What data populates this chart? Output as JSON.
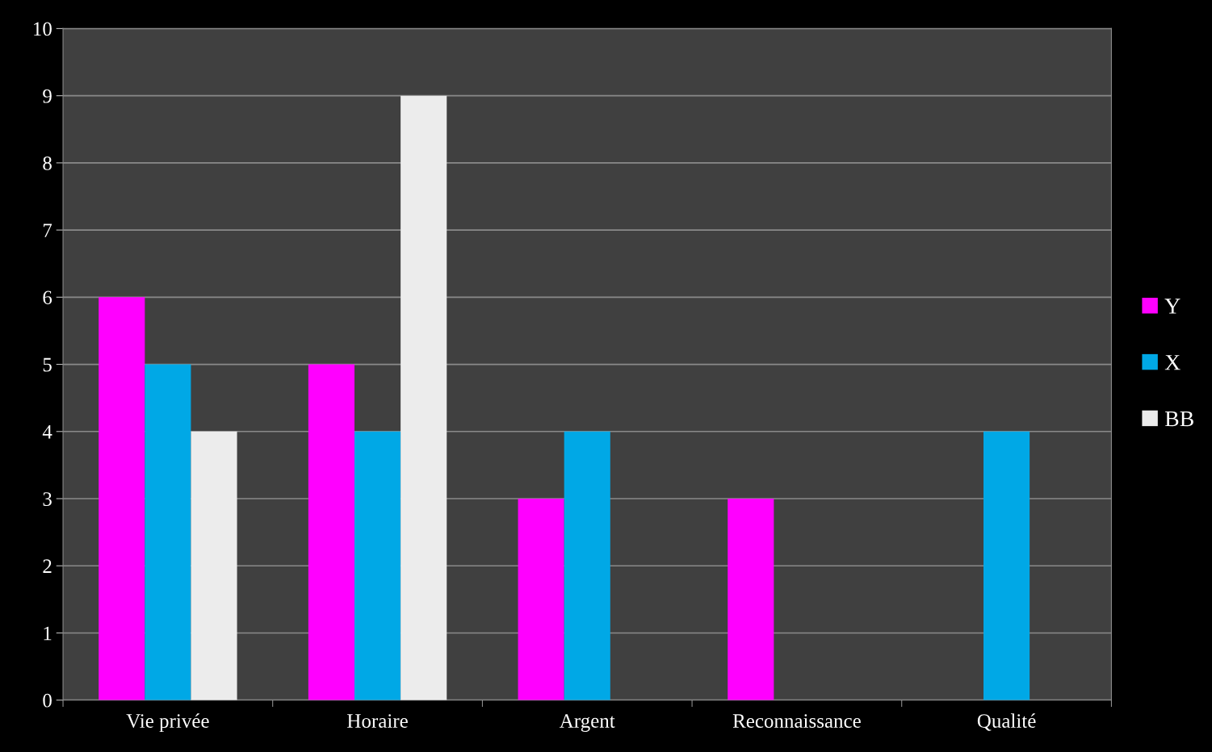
{
  "chart_data": {
    "type": "bar",
    "categories": [
      "Vie privée",
      "Horaire",
      "Argent",
      "Reconnaissance",
      "Qualité"
    ],
    "series": [
      {
        "name": "Y",
        "color": "#ff00ff",
        "values": [
          6,
          5,
          3,
          3,
          null
        ]
      },
      {
        "name": "X",
        "color": "#00a8e6",
        "values": [
          5,
          4,
          4,
          null,
          4
        ]
      },
      {
        "name": "BB",
        "color": "#ececec",
        "values": [
          4,
          9,
          null,
          null,
          null
        ]
      }
    ],
    "ylim": [
      0,
      10
    ],
    "yticks": [
      0,
      1,
      2,
      3,
      4,
      5,
      6,
      7,
      8,
      9,
      10
    ],
    "grid": "y",
    "legend": "right"
  }
}
